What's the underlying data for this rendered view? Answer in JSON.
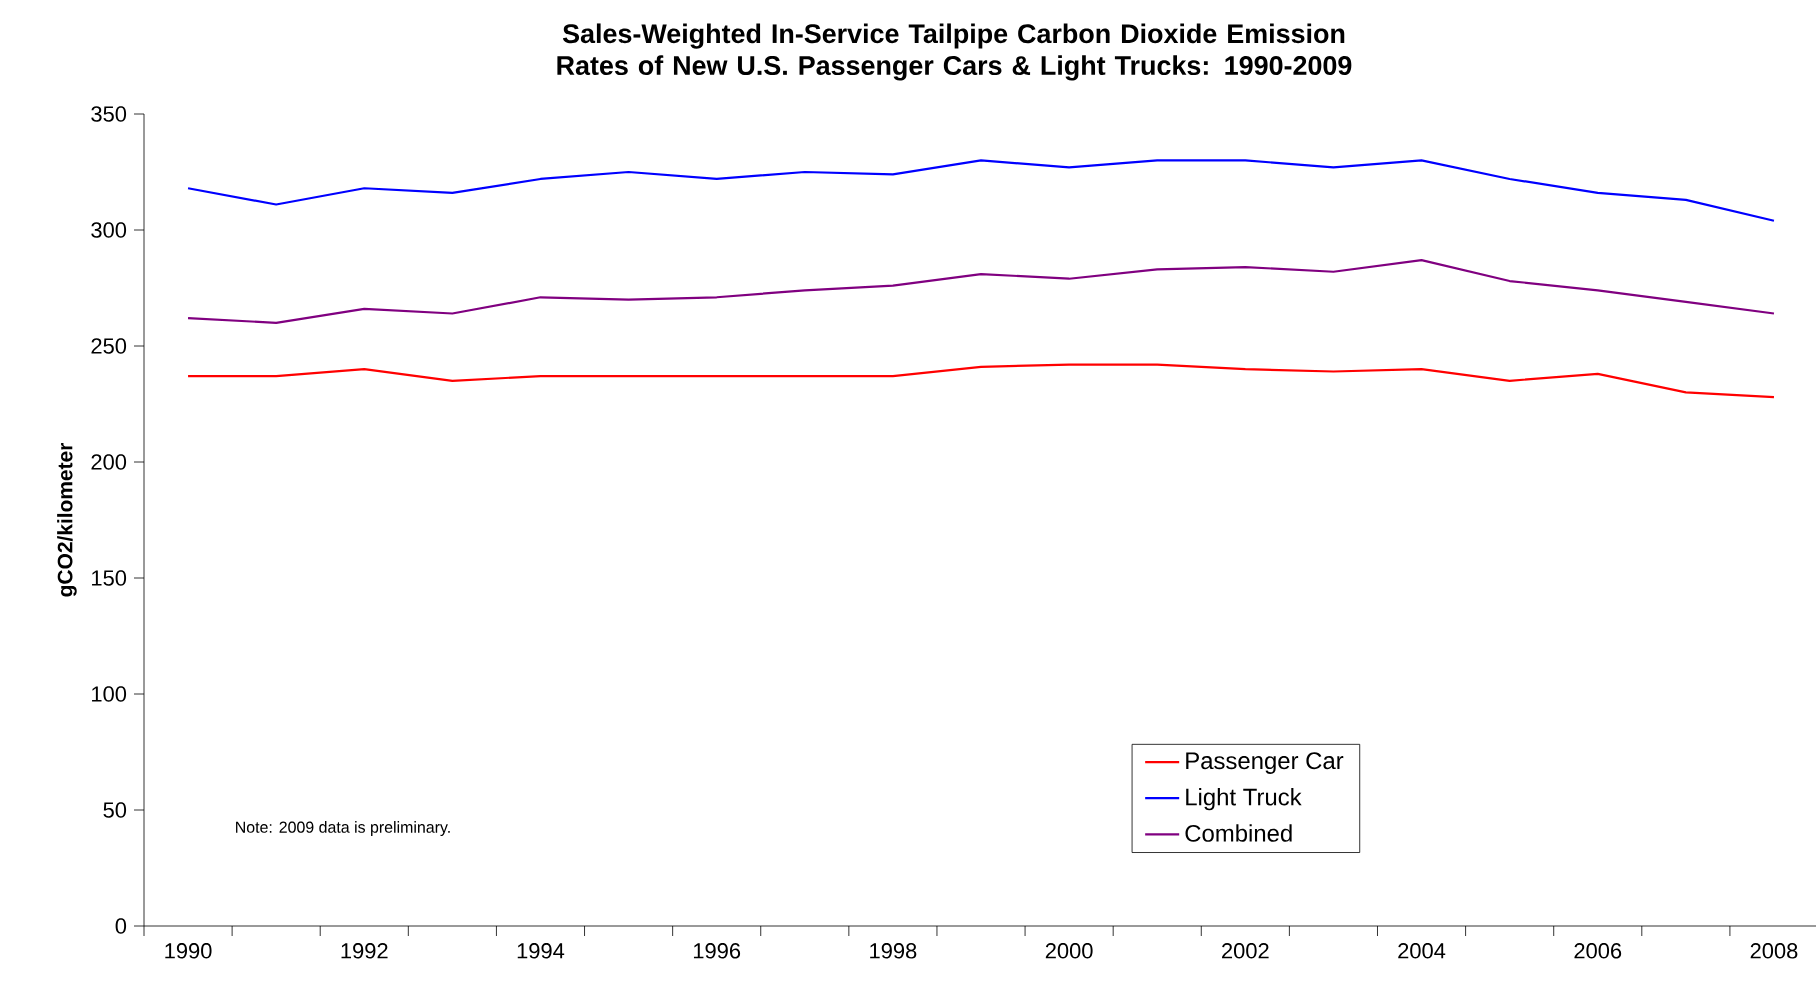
{
  "chart_data": {
    "type": "line",
    "title": "Sales-Weighted In-Service Tailpipe Carbon Dioxide Emission Rates of New U.S. Passenger Cars & Light Trucks: 1990-2009",
    "ylabel": "gCO2/kilometer",
    "categories": [
      "1990",
      null,
      "1992",
      null,
      "1994",
      null,
      "1996",
      null,
      "1998",
      null,
      "2000",
      null,
      "2002",
      null,
      "2004",
      null,
      "2006",
      null,
      "2008"
    ],
    "series": [
      {
        "name": "Passenger Car",
        "color": "#ff0000",
        "values": [
          237,
          237,
          240,
          235,
          237,
          237,
          237,
          237,
          237,
          241,
          242,
          242,
          240,
          239,
          240,
          235,
          238,
          230,
          228
        ]
      },
      {
        "name": "Light Truck",
        "color": "#0000ff",
        "values": [
          318,
          311,
          318,
          316,
          322,
          325,
          322,
          325,
          324,
          330,
          327,
          330,
          330,
          327,
          330,
          322,
          316,
          313,
          304
        ]
      },
      {
        "name": "Combined",
        "color": "#800080",
        "values": [
          262,
          260,
          266,
          264,
          271,
          270,
          271,
          274,
          276,
          281,
          279,
          283,
          284,
          282,
          287,
          278,
          274,
          269,
          264
        ]
      }
    ],
    "ylim": [
      0,
      350
    ],
    "yticks": [
      0,
      50,
      100,
      150,
      200,
      250,
      300,
      350
    ],
    "legend": "bottom right",
    "marker": "none",
    "line_style": "solid",
    "grid": false,
    "annotations": [
      "Note:  2009 data is preliminary."
    ]
  }
}
